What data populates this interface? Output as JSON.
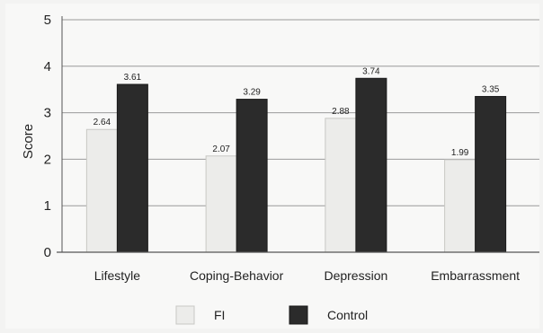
{
  "chart_data": {
    "type": "bar",
    "ylabel": "Score",
    "ylim": [
      0,
      5
    ],
    "yticks": [
      0,
      1,
      2,
      3,
      4,
      5
    ],
    "categories": [
      "Lifestyle",
      "Coping-Behavior",
      "Depression",
      "Embarrassment"
    ],
    "series": [
      {
        "name": "FI",
        "values": [
          2.64,
          2.07,
          2.88,
          1.99
        ],
        "value_labels": [
          "2.64",
          "2.07",
          "2.88",
          "1.99"
        ],
        "color": "#ececea"
      },
      {
        "name": "Control",
        "values": [
          3.61,
          3.29,
          3.74,
          3.35
        ],
        "value_labels": [
          "3.61",
          "3.29",
          "3.74",
          "3.35"
        ],
        "color": "#2b2b2b"
      }
    ],
    "grid": true,
    "legend": "bottom"
  }
}
